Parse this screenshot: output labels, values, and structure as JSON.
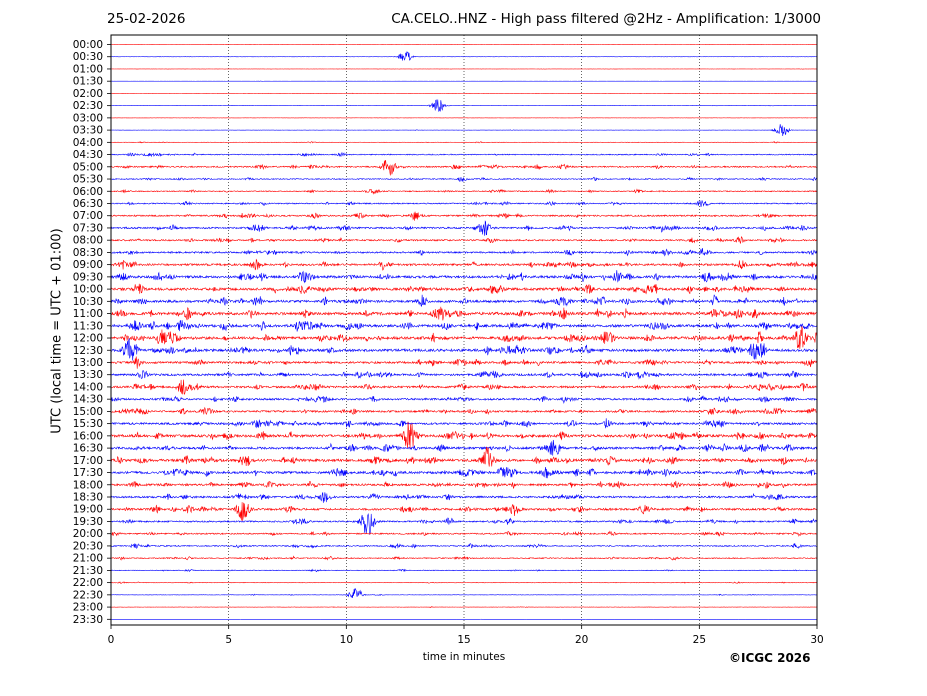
{
  "header": {
    "date": "25-02-2026",
    "title": "CA.CELO..HNZ - High pass filtered @2Hz - Amplification: 1/3000"
  },
  "copyright": "©ICGC 2026",
  "chart_data": {
    "type": "helicorder",
    "xlabel": "time in minutes",
    "ylabel": "UTC (local time = UTC + 01:00)",
    "xlim": [
      0,
      30
    ],
    "x_ticks": [
      0,
      5,
      10,
      15,
      20,
      25,
      30
    ],
    "vertical_gridlines": [
      5,
      10,
      15,
      20,
      25
    ],
    "grid": "vertical dotted lines every 5 minutes",
    "trace_colors": [
      "#ff0000",
      "#0000ff"
    ],
    "rows": [
      "00:00",
      "00:30",
      "01:00",
      "01:30",
      "02:00",
      "02:30",
      "03:00",
      "03:30",
      "04:00",
      "04:30",
      "05:00",
      "05:30",
      "06:00",
      "06:30",
      "07:00",
      "07:30",
      "08:00",
      "08:30",
      "09:00",
      "09:30",
      "10:00",
      "10:30",
      "11:00",
      "11:30",
      "12:00",
      "12:30",
      "13:00",
      "13:30",
      "14:00",
      "14:30",
      "15:00",
      "15:30",
      "16:00",
      "16:30",
      "17:00",
      "17:30",
      "18:00",
      "18:30",
      "19:00",
      "19:30",
      "20:00",
      "20:30",
      "21:00",
      "21:30",
      "22:00",
      "22:30",
      "23:00",
      "23:30"
    ],
    "relative_noise_level": [
      0.05,
      0.05,
      0.05,
      0.04,
      0.05,
      0.05,
      0.04,
      0.05,
      0.12,
      0.3,
      0.4,
      0.3,
      0.3,
      0.35,
      0.45,
      0.5,
      0.45,
      0.5,
      0.6,
      0.7,
      0.75,
      0.7,
      0.8,
      0.75,
      0.8,
      0.75,
      0.6,
      0.6,
      0.6,
      0.55,
      0.55,
      0.6,
      0.75,
      0.65,
      0.75,
      0.7,
      0.6,
      0.55,
      0.6,
      0.45,
      0.4,
      0.35,
      0.3,
      0.2,
      0.15,
      0.1,
      0.08,
      0.03
    ],
    "notable_events": [
      {
        "row": "00:30",
        "minute": 12.5,
        "strength": 0.6
      },
      {
        "row": "02:30",
        "minute": 13.9,
        "strength": 0.7
      },
      {
        "row": "03:30",
        "minute": 28.5,
        "strength": 0.7
      },
      {
        "row": "05:00",
        "minute": 11.8,
        "strength": 1.0
      },
      {
        "row": "07:30",
        "minute": 15.8,
        "strength": 1.0
      },
      {
        "row": "12:00",
        "minute": 2.2,
        "strength": 0.9
      },
      {
        "row": "12:00",
        "minute": 29.3,
        "strength": 1.0
      },
      {
        "row": "12:30",
        "minute": 0.8,
        "strength": 1.2
      },
      {
        "row": "16:00",
        "minute": 12.7,
        "strength": 1.5
      },
      {
        "row": "16:30",
        "minute": 18.8,
        "strength": 1.0
      },
      {
        "row": "17:00",
        "minute": 16.0,
        "strength": 1.1
      },
      {
        "row": "19:00",
        "minute": 5.6,
        "strength": 1.0
      },
      {
        "row": "19:30",
        "minute": 10.9,
        "strength": 1.4
      },
      {
        "row": "22:30",
        "minute": 10.4,
        "strength": 0.7
      }
    ]
  }
}
